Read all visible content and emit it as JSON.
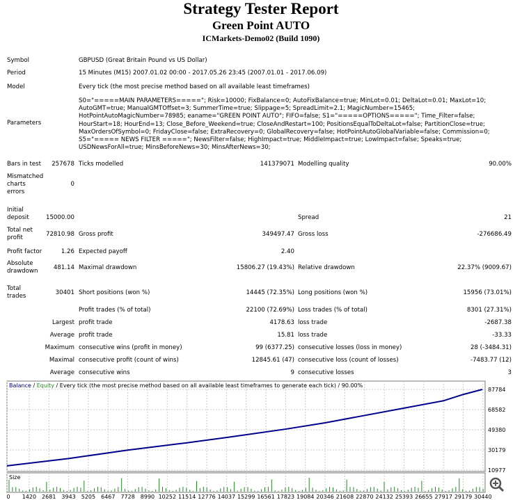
{
  "title": "Strategy Tester Report",
  "ea_name": "Green Point AUTO",
  "server": "ICMarkets-Demo02 (Build 1090)",
  "symbol": {
    "label": "Symbol",
    "value": "GBPUSD (Great Britain Pound vs US Dollar)"
  },
  "period": {
    "label": "Period",
    "value": "15 Minutes (M15) 2007.01.02 00:00 - 2017.05.26 23:45 (2007.01.01 - 2017.06.09)"
  },
  "model": {
    "label": "Model",
    "value": "Every tick (the most precise method based on all available least timeframes)"
  },
  "parameters": {
    "label": "Parameters",
    "lines": [
      "S0=\"=====MAIN PARAMETERS=====\"; Risk=10000; FixBalance=0; AutoFixBalance=true; MinLot=0.01; DeltaLot=0.01; MaxLot=10;",
      "AutoGMT=true; ManualGMTOffset=3; SummerTime=true; Slippage=5; SpreadLimit=2.1; MagicNumber=15465;",
      "HotPointAutoMagicNumber=78985; eaname=\"GREEN POINT AUTO\"; FIFO=false; S1=\"=====OPTIONS=====\"; Time_Filter=false;",
      "HourStart=18; HourEnd=13; Close_Before_Weekend=true; CloseAndRestart=100; PositionsEqualToDeltaLot=false; PartitionClose=true;",
      "MaxOrdersOfSymbol=0; FridayClose=false; ExtraRecovery=0; GlobalRecovery=false; HotPointAutoGlobalVariable=false; Commission=0;",
      "S5=\"===== NEWS FILTER =====\"; NewsFilter=false; HighImpact=true; MiddleImpact=true; LowImpact=false; Speaks=true;",
      "USDNewsForAll=true; MinsBeforeNews=30; MinsAfterNews=30;"
    ]
  },
  "stats": {
    "bars_label": "Bars in test",
    "bars": "257678",
    "ticks_label": "Ticks modelled",
    "ticks": "141379071",
    "quality_label": "Modelling quality",
    "quality": "90.00%",
    "mismatch_label": [
      "Mismatched",
      "charts",
      "errors"
    ],
    "mismatch": "0",
    "deposit_label": [
      "Initial",
      "deposit"
    ],
    "deposit": "15000.00",
    "spread_label": "Spread",
    "spread": "21",
    "net_label": [
      "Total net",
      "profit"
    ],
    "net": "72810.98",
    "gross_profit_label": "Gross profit",
    "gross_profit": "349497.47",
    "gross_loss_label": "Gross loss",
    "gross_loss": "-276686.49",
    "pf_label": "Profit factor",
    "pf": "1.26",
    "ep_label": "Expected payoff",
    "ep": "2.40",
    "abs_dd_label": [
      "Absolute",
      "drawdown"
    ],
    "abs_dd": "481.14",
    "max_dd_label": "Maximal drawdown",
    "max_dd": "15806.27 (19.43%)",
    "rel_dd_label": "Relative drawdown",
    "rel_dd": "22.37% (9009.67)",
    "trades_label": [
      "Total",
      "trades"
    ],
    "trades": "30401",
    "short_label": "Short positions (won %)",
    "short": "14445 (72.35%)",
    "long_label": "Long positions (won %)",
    "long": "15956 (73.01%)",
    "ptrades_label": "Profit trades (% of total)",
    "ptrades": "22100 (72.69%)",
    "ltrades_label": "Loss trades (% of total)",
    "ltrades": "8301 (27.31%)",
    "largest": "Largest",
    "avg": "Average",
    "maximum": "Maximum",
    "maximal": "Maximal",
    "average2": "Average",
    "lp_label": "profit trade",
    "lp": "4178.63",
    "ll_label": "loss trade",
    "ll": "-2687.38",
    "ap_label": "profit trade",
    "ap": "15.81",
    "al_label": "loss trade",
    "al": "-33.33",
    "mcw_label": "consecutive wins (profit in money)",
    "mcw": "99 (6377.25)",
    "mcl_label": "consecutive losses (loss in money)",
    "mcl": "28 (-3484.31)",
    "mcp_label": "consecutive profit (count of wins)",
    "mcp": "12845.61 (47)",
    "mclo_label": "consecutive loss (count of losses)",
    "mclo": "-7483.77 (12)",
    "acw_label": "consecutive wins",
    "acw": "9",
    "acl_label": "consecutive losses",
    "acl": "3"
  },
  "chart_data": {
    "type": "line",
    "legend": {
      "balance": "Balance",
      "sep1": " / ",
      "equity": "Equity",
      "rest": " / Every tick (the most precise method based on all available least timeframes to generate each tick) / 90.00%"
    },
    "colors": {
      "balance": "#00008b",
      "equity": "#228b22"
    },
    "ylim": [
      10977,
      87784
    ],
    "yticks": [
      "87784",
      "68582",
      "49380",
      "30179",
      "10977"
    ],
    "xticks": [
      "0",
      "1420",
      "2681",
      "3943",
      "5205",
      "6467",
      "7728",
      "8990",
      "10252",
      "11514",
      "12776",
      "14037",
      "15299",
      "16561",
      "17823",
      "19084",
      "20346",
      "21608",
      "22870",
      "24132",
      "25393",
      "26655",
      "27917",
      "29179",
      "30440"
    ],
    "xlim": [
      0,
      30401
    ],
    "balance": {
      "x": [
        0,
        3943,
        7728,
        11514,
        14037,
        17823,
        20346,
        22870,
        25393,
        27917,
        29179,
        30401
      ],
      "y": [
        15000,
        22000,
        30000,
        37000,
        42000,
        50000,
        56000,
        63000,
        70000,
        77000,
        83000,
        87800
      ]
    },
    "size_label": "Size"
  }
}
